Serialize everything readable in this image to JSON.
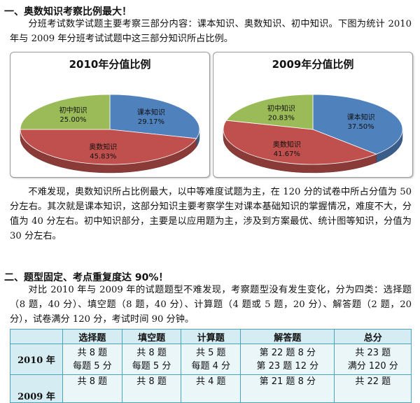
{
  "section1": {
    "heading": "一、奥数知识考察比例最大！",
    "intro": "分班考试数学试题主要考察三部分内容：课本知识、奥数知识、初中知识。下图为统计 2010 年与 2009 年分班考试试题中这三部分知识所占比例。",
    "analysis": "不难发现，奥数知识所占比例最大，以中等难度试题为主，在 120 分的试卷中所占分值为 50 分左右。其次就是课本知识，这部分知识主要考察学生对课本基础知识的掌握情况，难度不大，分值为 40 分左右。初中知识部分，主要是以应用题为主，涉及到方案最优、统计图等知识，分值为 30 分左右。"
  },
  "chart_data": [
    {
      "type": "pie",
      "title": "2010年分值比例",
      "series": [
        {
          "name": "课本知识",
          "value": 29.17,
          "label": "29.17%",
          "color": "#4f81bd"
        },
        {
          "name": "奥数知识",
          "value": 45.83,
          "label": "45.83%",
          "color": "#c0504d"
        },
        {
          "name": "初中知识",
          "value": 25.0,
          "label": "25.00%",
          "color": "#9bbb59"
        }
      ]
    },
    {
      "type": "pie",
      "title": "2009年分值比例",
      "series": [
        {
          "name": "课本知识",
          "value": 37.5,
          "label": "37.50%",
          "color": "#4f81bd"
        },
        {
          "name": "奥数知识",
          "value": 41.67,
          "label": "41.67%",
          "color": "#c0504d"
        },
        {
          "name": "初中知识",
          "value": 20.83,
          "label": "20.83%",
          "color": "#9bbb59"
        }
      ]
    }
  ],
  "section2": {
    "heading": "二、题型固定、考点重复度达 90%！",
    "intro": "对比 2010 年与 2009 年的试题题型不难发现，考察题型没有发生变化，分为四类：选择题（8 题，40 分）、填空题（8 题，40 分）、计算题（4 题或 5 题，20 分）、解答题（2 题，20 分），试卷满分 120 分，考试时间 90 分钟。"
  },
  "table": {
    "headers": [
      "",
      "选择题",
      "填空题",
      "计算题",
      "解答题",
      "总分"
    ],
    "rows": [
      {
        "year": "2010 年",
        "cells": [
          [
            "共 8 题",
            "每题 5 分"
          ],
          [
            "共 8 题",
            "每题 5 分"
          ],
          [
            "共 5 题",
            "每题 4 分"
          ],
          [
            "第 22 题 8 分",
            "第 23 题 12 分"
          ],
          [
            "共 23 题",
            "满分 120 分"
          ]
        ]
      },
      {
        "year": "2009 年",
        "cells": [
          [
            "共 8 题"
          ],
          [
            "共 8 题"
          ],
          [
            "共 4 题"
          ],
          [
            "第 21 题 8 分"
          ],
          [
            "共 22 题"
          ]
        ]
      }
    ]
  }
}
